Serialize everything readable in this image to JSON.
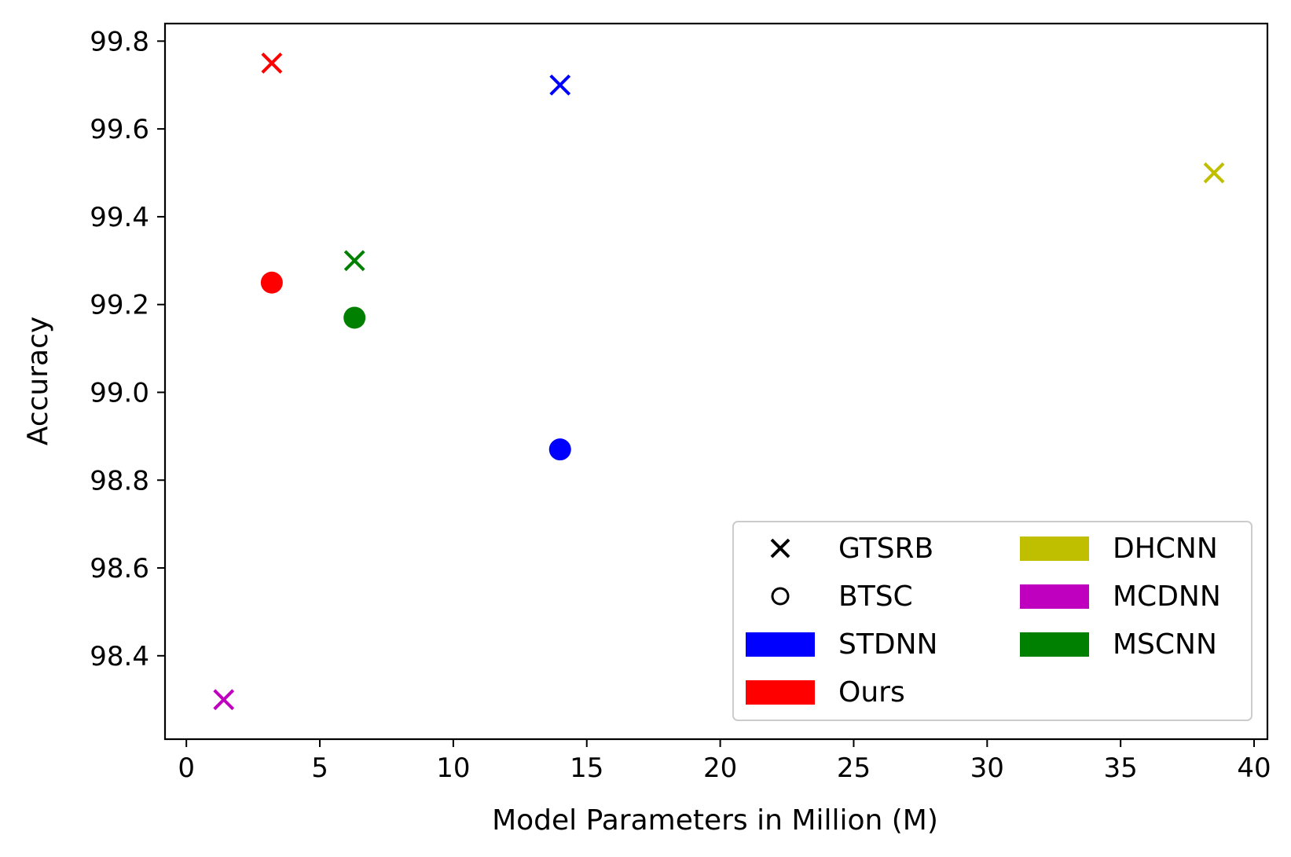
{
  "chart_data": {
    "type": "scatter",
    "xlabel": "Model Parameters in Million (M)",
    "ylabel": "Accuracy",
    "xlim": [
      -0.8,
      40.5
    ],
    "ylim": [
      98.21,
      99.84
    ],
    "x_ticks": [
      0,
      5,
      10,
      15,
      20,
      25,
      30,
      35,
      40
    ],
    "x_tick_labels": [
      "0",
      "5",
      "10",
      "15",
      "20",
      "25",
      "30",
      "35",
      "40"
    ],
    "y_ticks": [
      98.4,
      98.6,
      98.8,
      99.0,
      99.2,
      99.4,
      99.6,
      99.8
    ],
    "y_tick_labels": [
      "98.4",
      "98.6",
      "98.8",
      "99.0",
      "99.2",
      "99.4",
      "99.6",
      "99.8"
    ],
    "grid": false,
    "legend_position": "lower right",
    "legend": [
      {
        "label": "GTSRB",
        "kind": "marker",
        "marker": "x"
      },
      {
        "label": "BTSC",
        "kind": "marker",
        "marker": "circle-open"
      },
      {
        "label": "STDNN",
        "kind": "patch",
        "color": "#0000ff"
      },
      {
        "label": "Ours",
        "kind": "patch",
        "color": "#ff0000"
      },
      {
        "label": "DHCNN",
        "kind": "patch",
        "color": "#bfbf00"
      },
      {
        "label": "MCDNN",
        "kind": "patch",
        "color": "#bf00bf"
      },
      {
        "label": "MSCNN",
        "kind": "patch",
        "color": "#008000"
      }
    ],
    "points": [
      {
        "model": "Ours",
        "dataset": "GTSRB",
        "marker": "x",
        "color": "#ff0000",
        "x": 3.2,
        "y": 99.75
      },
      {
        "model": "Ours",
        "dataset": "BTSC",
        "marker": "circle",
        "color": "#ff0000",
        "x": 3.2,
        "y": 99.25
      },
      {
        "model": "STDNN",
        "dataset": "GTSRB",
        "marker": "x",
        "color": "#0000ff",
        "x": 14.0,
        "y": 99.7
      },
      {
        "model": "STDNN",
        "dataset": "BTSC",
        "marker": "circle",
        "color": "#0000ff",
        "x": 14.0,
        "y": 98.87
      },
      {
        "model": "MSCNN",
        "dataset": "GTSRB",
        "marker": "x",
        "color": "#008000",
        "x": 6.3,
        "y": 99.3
      },
      {
        "model": "MSCNN",
        "dataset": "BTSC",
        "marker": "circle",
        "color": "#008000",
        "x": 6.3,
        "y": 99.17
      },
      {
        "model": "DHCNN",
        "dataset": "GTSRB",
        "marker": "x",
        "color": "#bfbf00",
        "x": 38.5,
        "y": 99.5
      },
      {
        "model": "MCDNN",
        "dataset": "GTSRB",
        "marker": "x",
        "color": "#bf00bf",
        "x": 1.4,
        "y": 98.3
      }
    ]
  }
}
